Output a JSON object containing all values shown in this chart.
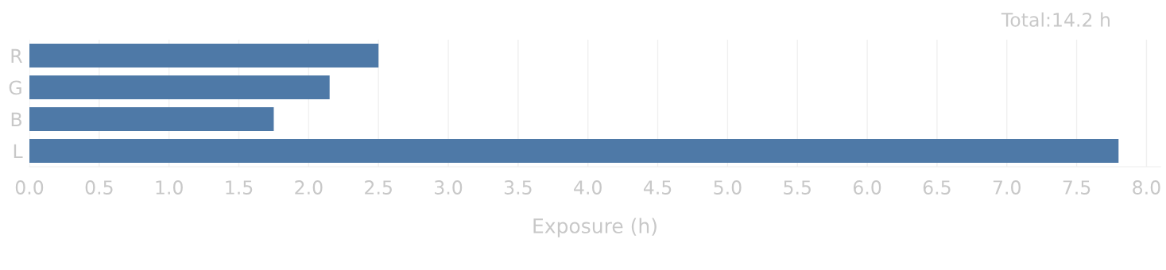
{
  "chart_data": {
    "type": "bar",
    "orientation": "horizontal",
    "xlabel": "Exposure (h)",
    "categories": [
      "R",
      "G",
      "B",
      "L"
    ],
    "values": [
      2.5,
      2.15,
      1.75,
      7.8
    ],
    "color": "#4e79a7",
    "xlim": [
      0,
      8.1
    ],
    "xticks": [
      {
        "value": 0,
        "label": "0.0"
      },
      0.5,
      {
        "value": 1,
        "label": "1.0"
      },
      1.5,
      {
        "value": 2,
        "label": "2.0"
      },
      2.5,
      {
        "value": 3,
        "label": "3.0"
      },
      3.5,
      {
        "value": 4,
        "label": "4.0"
      },
      4.5,
      {
        "value": 5,
        "label": "5.0"
      },
      5.5,
      {
        "value": 6,
        "label": "6.0"
      },
      6.5,
      {
        "value": 7,
        "label": "7.0"
      },
      7.5,
      {
        "value": 8,
        "label": "8.0"
      }
    ],
    "grid": "x",
    "annotations": [
      "Total:14.2 h"
    ]
  }
}
